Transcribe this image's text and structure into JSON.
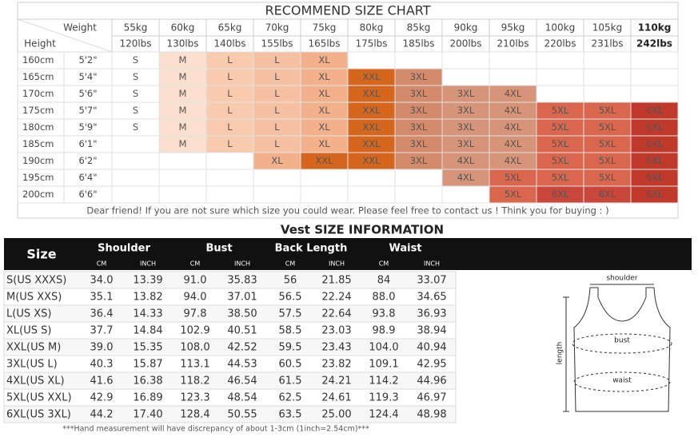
{
  "size_chart": {
    "title": "RECOMMEND SIZE CHART",
    "weight_label": "Weight",
    "height_label": "Height",
    "weights_kg": [
      "55kg",
      "60kg",
      "65kg",
      "70kg",
      "75kg",
      "80kg",
      "85kg",
      "90kg",
      "95kg",
      "100kg",
      "105kg",
      "110kg"
    ],
    "weights_lbs": [
      "120lbs",
      "130lbs",
      "140lbs",
      "155lbs",
      "165lbs",
      "175lbs",
      "185lbs",
      "200lbs",
      "210lbs",
      "220lbs",
      "231lbs",
      "242lbs"
    ],
    "rows": [
      {
        "cm": "160cm",
        "ft": "5'2\"",
        "sizes": [
          "S",
          "M",
          "L",
          "L",
          "XL",
          null,
          null,
          null,
          null,
          null,
          null,
          null
        ],
        "colors": [
          "#ffffff",
          "#fbe0cf",
          "#f8caae",
          "#f6c1a3",
          "#f2b08b",
          "#ffffff",
          "#ffffff",
          "#ffffff",
          "#ffffff",
          "#ffffff",
          "#ffffff",
          "#ffffff"
        ]
      },
      {
        "cm": "165cm",
        "ft": "5'4\"",
        "sizes": [
          "S",
          "M",
          "L",
          "L",
          "XL",
          "XXL",
          "3XL",
          null,
          null,
          null,
          null,
          null
        ],
        "colors": [
          "#ffffff",
          "#fbe0cf",
          "#f8caae",
          "#f6c1a3",
          "#f2b08b",
          "#d5661e",
          "#d48b6b",
          "#ffffff",
          "#ffffff",
          "#ffffff",
          "#ffffff",
          "#ffffff"
        ]
      },
      {
        "cm": "170cm",
        "ft": "5'6\"",
        "sizes": [
          "S",
          "M",
          "L",
          "L",
          "XL",
          "XXL",
          "3XL",
          "3XL",
          "4XL",
          null,
          null,
          null
        ],
        "colors": [
          "#ffffff",
          "#fbe0cf",
          "#f8caae",
          "#f6c1a3",
          "#f2b08b",
          "#d5661e",
          "#d48b6b",
          "#d69479",
          "#d69479",
          "#ffffff",
          "#ffffff",
          "#ffffff"
        ]
      },
      {
        "cm": "175cm",
        "ft": "5'7\"",
        "sizes": [
          "S",
          "M",
          "L",
          "L",
          "XL",
          "XXL",
          "3XL",
          "3XL",
          "4XL",
          "5XL",
          "5XL",
          "6XL"
        ],
        "colors": [
          "#ffffff",
          "#fbe0cf",
          "#f8caae",
          "#f6c1a3",
          "#f2b08b",
          "#d5661e",
          "#d48b6b",
          "#d69479",
          "#d69479",
          "#d9674e",
          "#d9674e",
          "#c0392b"
        ]
      },
      {
        "cm": "180cm",
        "ft": "5'9\"",
        "sizes": [
          "S",
          "M",
          "L",
          "L",
          "XL",
          "XXL",
          "3XL",
          "3XL",
          "4XL",
          "5XL",
          "5XL",
          "6XL"
        ],
        "colors": [
          "#ffffff",
          "#fbe0cf",
          "#f8caae",
          "#f6c1a3",
          "#f2b08b",
          "#d5661e",
          "#d48b6b",
          "#d69479",
          "#d69479",
          "#d9674e",
          "#d9674e",
          "#c0392b"
        ]
      },
      {
        "cm": "185cm",
        "ft": "6'1\"",
        "sizes": [
          null,
          "M",
          "L",
          "L",
          "XL",
          "XXL",
          "3XL",
          "3XL",
          "4XL",
          "5XL",
          "5XL",
          "6XL"
        ],
        "colors": [
          "#ffffff",
          "#fbe0cf",
          "#f8caae",
          "#f6c1a3",
          "#f2b08b",
          "#d5661e",
          "#d48b6b",
          "#d69479",
          "#d69479",
          "#d9674e",
          "#d9674e",
          "#c0392b"
        ]
      },
      {
        "cm": "190cm",
        "ft": "6'2\"",
        "sizes": [
          null,
          null,
          null,
          "XL",
          "XXL",
          "XXL",
          "3XL",
          "4XL",
          "4XL",
          "5XL",
          "5XL",
          "6XL"
        ],
        "colors": [
          "#ffffff",
          "#ffffff",
          "#ffffff",
          "#f2b08b",
          "#d5661e",
          "#d5661e",
          "#d48b6b",
          "#d69479",
          "#d69479",
          "#d9674e",
          "#d9674e",
          "#c0392b"
        ]
      },
      {
        "cm": "195cm",
        "ft": "6'4\"",
        "sizes": [
          null,
          null,
          null,
          null,
          null,
          null,
          null,
          "4XL",
          "5XL",
          "5XL",
          "5XL",
          "6XL"
        ],
        "colors": [
          "#ffffff",
          "#ffffff",
          "#ffffff",
          "#ffffff",
          "#ffffff",
          "#ffffff",
          "#ffffff",
          "#d69479",
          "#d9674e",
          "#d9674e",
          "#d9674e",
          "#c0392b"
        ]
      },
      {
        "cm": "200cm",
        "ft": "6'6\"",
        "sizes": [
          null,
          null,
          null,
          null,
          null,
          null,
          null,
          null,
          "5XL",
          "6XL",
          "6XL",
          "6XL"
        ],
        "colors": [
          "#ffffff",
          "#ffffff",
          "#ffffff",
          "#ffffff",
          "#ffffff",
          "#ffffff",
          "#ffffff",
          "#ffffff",
          "#d9674e",
          "#c9463b",
          "#c9463b",
          "#c0392b"
        ]
      }
    ],
    "note": "Dear friend! If you are not sure which size you could wear. Please feel free to contact us ! Think you for buying : )"
  },
  "vest": {
    "title": "Vest SIZE INFORMATION",
    "size_header": "Size",
    "groups": [
      "Shoulder",
      "Bust",
      "Back Length",
      "Waist"
    ],
    "units": [
      "CM",
      "INCH",
      "CM",
      "INCH",
      "CM",
      "INCH",
      "CM",
      "INCH"
    ],
    "rows": [
      [
        "S(US XXXS)",
        "34.0",
        "13.39",
        "91.0",
        "35.83",
        "56",
        "21.85",
        "84",
        "33.07"
      ],
      [
        "M(US XXS)",
        "35.1",
        "13.82",
        "94.0",
        "37.01",
        "56.5",
        "22.24",
        "88.0",
        "34.65"
      ],
      [
        "L(US XS)",
        "36.4",
        "14.33",
        "97.8",
        "38.50",
        "57.5",
        "22.64",
        "93.8",
        "36.93"
      ],
      [
        "XL(US S)",
        "37.7",
        "14.84",
        "102.9",
        "40.51",
        "58.5",
        "23.03",
        "98.9",
        "38.94"
      ],
      [
        "XXL(US M)",
        "39.0",
        "15.35",
        "108.0",
        "42.52",
        "59.5",
        "23.43",
        "104.0",
        "40.94"
      ],
      [
        "3XL(US L)",
        "40.3",
        "15.87",
        "113.1",
        "44.53",
        "60.5",
        "23.82",
        "109.1",
        "42.95"
      ],
      [
        "4XL(US XL)",
        "41.6",
        "16.38",
        "118.2",
        "46.54",
        "61.5",
        "24.21",
        "114.2",
        "44.96"
      ],
      [
        "5XL(US XXL)",
        "42.9",
        "16.89",
        "123.3",
        "48.54",
        "62.5",
        "24.61",
        "119.3",
        "46.97"
      ],
      [
        "6XL(US 3XL)",
        "44.2",
        "17.40",
        "128.4",
        "50.55",
        "63.5",
        "25.00",
        "124.4",
        "48.98"
      ]
    ],
    "diagram": {
      "shoulder": "shoulder",
      "bust": "bust",
      "length": "length",
      "waist": "waist"
    },
    "footnote": "***Hand measurement will have discrepancy of about 1-3cm (1inch=2.54cm)***"
  }
}
